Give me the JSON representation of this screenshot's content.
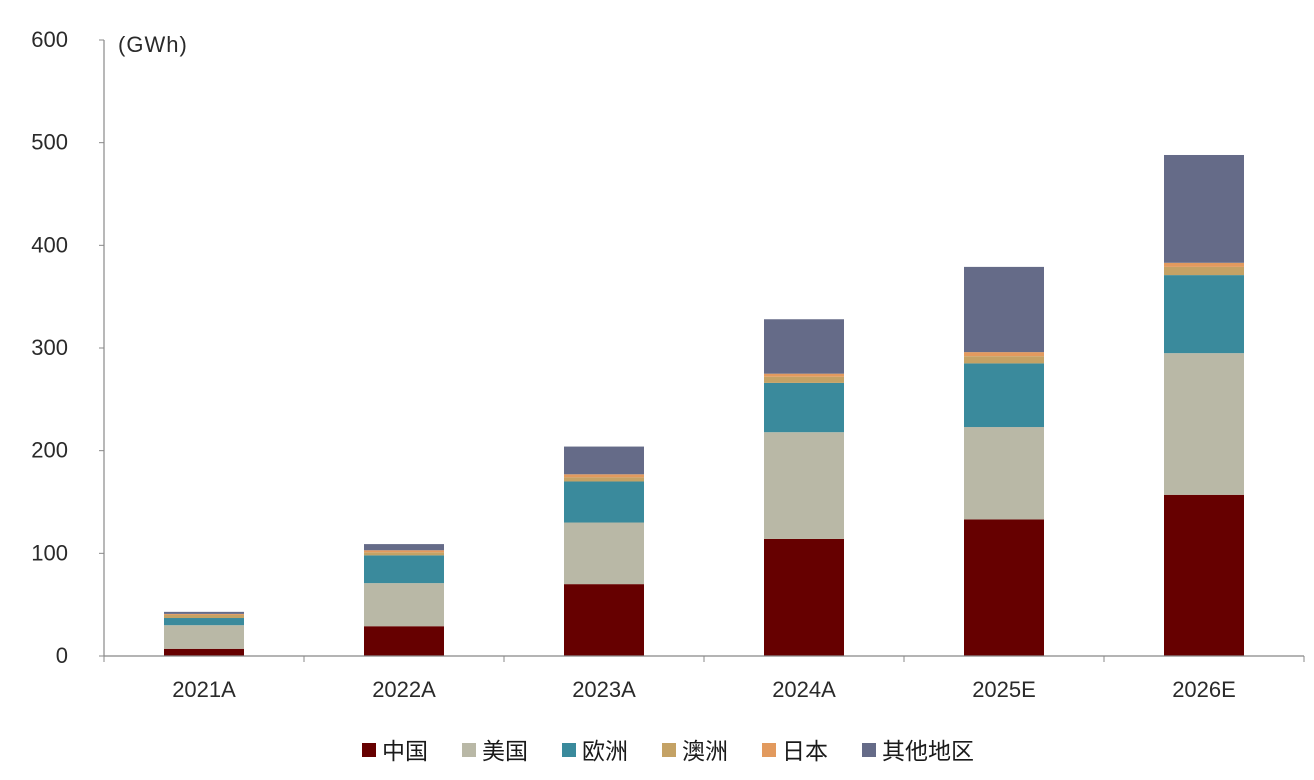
{
  "chart_data": {
    "type": "bar",
    "stacked": true,
    "unit_label": "(GWh)",
    "categories": [
      "2021A",
      "2022A",
      "2023A",
      "2024A",
      "2025E",
      "2026E"
    ],
    "ylim": [
      0,
      600
    ],
    "yticks": [
      "0",
      "100",
      "200",
      "300",
      "400",
      "500",
      "600"
    ],
    "grid": false,
    "legend_position": "bottom-center",
    "series": [
      {
        "name": "中国",
        "color": "#660000",
        "values": [
          7,
          29,
          70,
          114,
          133,
          157
        ]
      },
      {
        "name": "美国",
        "color": "#b9b8a6",
        "values": [
          23,
          42,
          60,
          104,
          90,
          138
        ]
      },
      {
        "name": "欧洲",
        "color": "#3a8a9c",
        "values": [
          7,
          27,
          40,
          48,
          62,
          76
        ]
      },
      {
        "name": "澳洲",
        "color": "#c4a265",
        "values": [
          3,
          3,
          4,
          6,
          7,
          8
        ]
      },
      {
        "name": "日本",
        "color": "#e29a5e",
        "values": [
          1,
          2,
          3,
          3,
          4,
          4
        ]
      },
      {
        "name": "其他地区",
        "color": "#656b88",
        "values": [
          2,
          6,
          27,
          53,
          83,
          105
        ]
      }
    ]
  }
}
